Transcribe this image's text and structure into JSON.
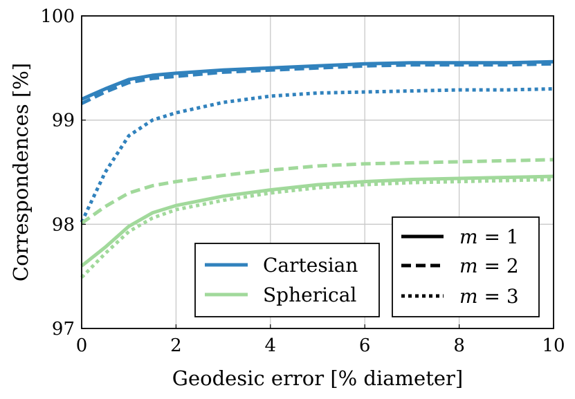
{
  "chart_data": {
    "type": "line",
    "title": "",
    "xlabel": "Geodesic error [% diameter]",
    "ylabel": "Correspondences [%]",
    "xlim": [
      0,
      10
    ],
    "ylim": [
      97,
      100
    ],
    "xticks": [
      "0",
      "2",
      "4",
      "6",
      "8",
      "10"
    ],
    "yticks": [
      "97",
      "98",
      "99",
      "100"
    ],
    "grid": true,
    "x": [
      0,
      0.5,
      1,
      1.5,
      2,
      3,
      4,
      5,
      6,
      7,
      8,
      9,
      10
    ],
    "series": [
      {
        "name": "Cartesian, m = 1",
        "encoding": "Cartesian",
        "m": 1,
        "color": "#3182bd",
        "dash": "solid",
        "values": [
          99.2,
          99.3,
          99.39,
          99.43,
          99.45,
          99.48,
          99.5,
          99.52,
          99.54,
          99.55,
          99.55,
          99.55,
          99.56
        ]
      },
      {
        "name": "Cartesian, m = 2",
        "encoding": "Cartesian",
        "m": 2,
        "color": "#3182bd",
        "dash": "dashed",
        "values": [
          99.16,
          99.27,
          99.36,
          99.4,
          99.42,
          99.46,
          99.48,
          99.5,
          99.52,
          99.53,
          99.53,
          99.53,
          99.54
        ]
      },
      {
        "name": "Cartesian, m = 3",
        "encoding": "Cartesian",
        "m": 3,
        "color": "#3182bd",
        "dash": "dotted",
        "values": [
          98.02,
          98.5,
          98.85,
          99.0,
          99.07,
          99.17,
          99.23,
          99.26,
          99.27,
          99.28,
          99.29,
          99.29,
          99.3
        ]
      },
      {
        "name": "Spherical, m = 1",
        "encoding": "Spherical",
        "m": 1,
        "color": "#a1d99b",
        "dash": "solid",
        "values": [
          97.6,
          97.78,
          97.98,
          98.11,
          98.18,
          98.27,
          98.33,
          98.38,
          98.41,
          98.43,
          98.44,
          98.45,
          98.46
        ]
      },
      {
        "name": "Spherical, m = 2",
        "encoding": "Spherical",
        "m": 2,
        "color": "#a1d99b",
        "dash": "dashed",
        "values": [
          98.01,
          98.17,
          98.3,
          98.37,
          98.41,
          98.47,
          98.52,
          98.56,
          98.58,
          98.59,
          98.6,
          98.61,
          98.62
        ]
      },
      {
        "name": "Spherical, m = 3",
        "encoding": "Spherical",
        "m": 3,
        "color": "#a1d99b",
        "dash": "dotted",
        "values": [
          97.49,
          97.72,
          97.93,
          98.06,
          98.14,
          98.23,
          98.3,
          98.35,
          98.38,
          98.4,
          98.41,
          98.42,
          98.43
        ]
      }
    ],
    "legends": [
      {
        "placement": "bottom-center",
        "items": [
          {
            "label": "Cartesian",
            "color": "#3182bd",
            "dash": "solid"
          },
          {
            "label": "Spherical",
            "color": "#a1d99b",
            "dash": "solid"
          }
        ]
      },
      {
        "placement": "bottom-right",
        "items": [
          {
            "var": "m",
            "eq": "= 1",
            "color": "#000000",
            "dash": "solid"
          },
          {
            "var": "m",
            "eq": "= 2",
            "color": "#000000",
            "dash": "dashed"
          },
          {
            "var": "m",
            "eq": "= 3",
            "color": "#000000",
            "dash": "dotted"
          }
        ]
      }
    ]
  }
}
